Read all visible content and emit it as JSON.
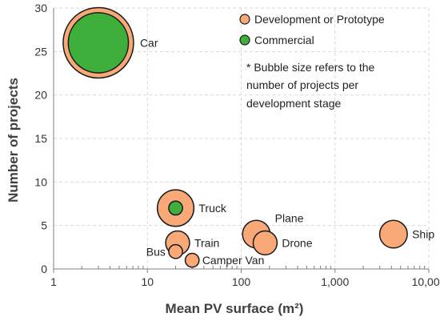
{
  "chart_data": {
    "type": "scatter",
    "subtype": "bubble",
    "xlabel": "Mean PV surface (m²)",
    "ylabel": "Number of projects",
    "x_scale": "log",
    "xlim": [
      1,
      10000
    ],
    "ylim": [
      0,
      30
    ],
    "x_ticks": [
      1,
      10,
      100,
      1000,
      10000
    ],
    "x_tick_labels": [
      "1",
      "10",
      "100",
      "1,000",
      "10,000"
    ],
    "y_ticks": [
      0,
      5,
      10,
      15,
      20,
      25,
      30
    ],
    "y_tick_labels": [
      "0",
      "5",
      "10",
      "15",
      "20",
      "25",
      "30"
    ],
    "grid": true,
    "legend_position": "top-right",
    "colors": {
      "development": "#F9A878",
      "commercial": "#3DAF3A",
      "outline": "#1A1A1A",
      "grid": "#D9D9D9"
    },
    "series": [
      {
        "name": "Development or Prototype",
        "points": [
          {
            "label": "Car",
            "x": 3,
            "y": 26,
            "size": 26
          },
          {
            "label": "Truck",
            "x": 20,
            "y": 7,
            "size": 7
          },
          {
            "label": "Plane",
            "x": 145,
            "y": 4,
            "size": 4
          },
          {
            "label": "Drone",
            "x": 180,
            "y": 3,
            "size": 3
          },
          {
            "label": "Ship",
            "x": 4200,
            "y": 4,
            "size": 4
          },
          {
            "label": "Train",
            "x": 21,
            "y": 3,
            "size": 3
          },
          {
            "label": "Bus",
            "x": 20,
            "y": 2,
            "size": 1
          },
          {
            "label": "Camper Van",
            "x": 30,
            "y": 1,
            "size": 1
          }
        ]
      },
      {
        "name": "Commercial",
        "points": [
          {
            "label": "Car",
            "x": 3,
            "y": 26,
            "size": 19
          },
          {
            "label": "Truck",
            "x": 20,
            "y": 7,
            "size": 1
          }
        ]
      }
    ],
    "annotation": "* Bubble size refers to the number of projects per development stage"
  },
  "note_lines": [
    "* Bubble size refers to the",
    "number of projects per",
    "development stage"
  ]
}
